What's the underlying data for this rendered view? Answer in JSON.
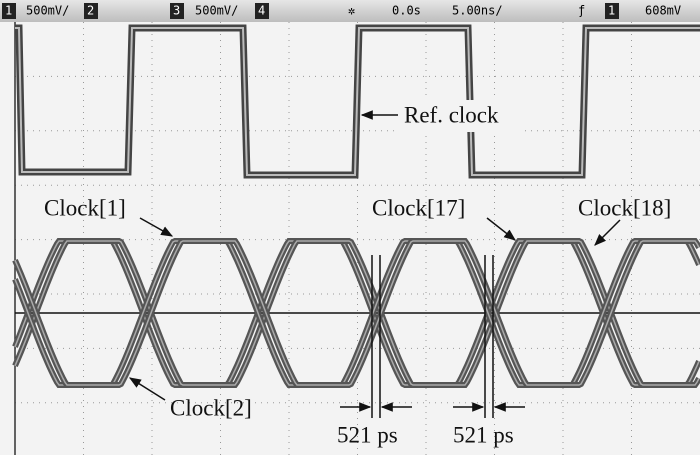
{
  "status_bar": {
    "ch1_num": "1",
    "ch1_scale": "500mV/",
    "ch2_num": "2",
    "ch3_num": "3",
    "ch3_scale": "500mV/",
    "ch4_num": "4",
    "time_offset": "0.0s",
    "time_scale": "5.00ns/",
    "trigger_ch": "1",
    "trigger_level": "608mV"
  },
  "annotations": {
    "ref_clock": "Ref. clock",
    "clock_1": "Clock[1]",
    "clock_17": "Clock[17]",
    "clock_18": "Clock[18]",
    "clock_2": "Clock[2]",
    "delay_a": "521 ps",
    "delay_b": "521 ps"
  }
}
